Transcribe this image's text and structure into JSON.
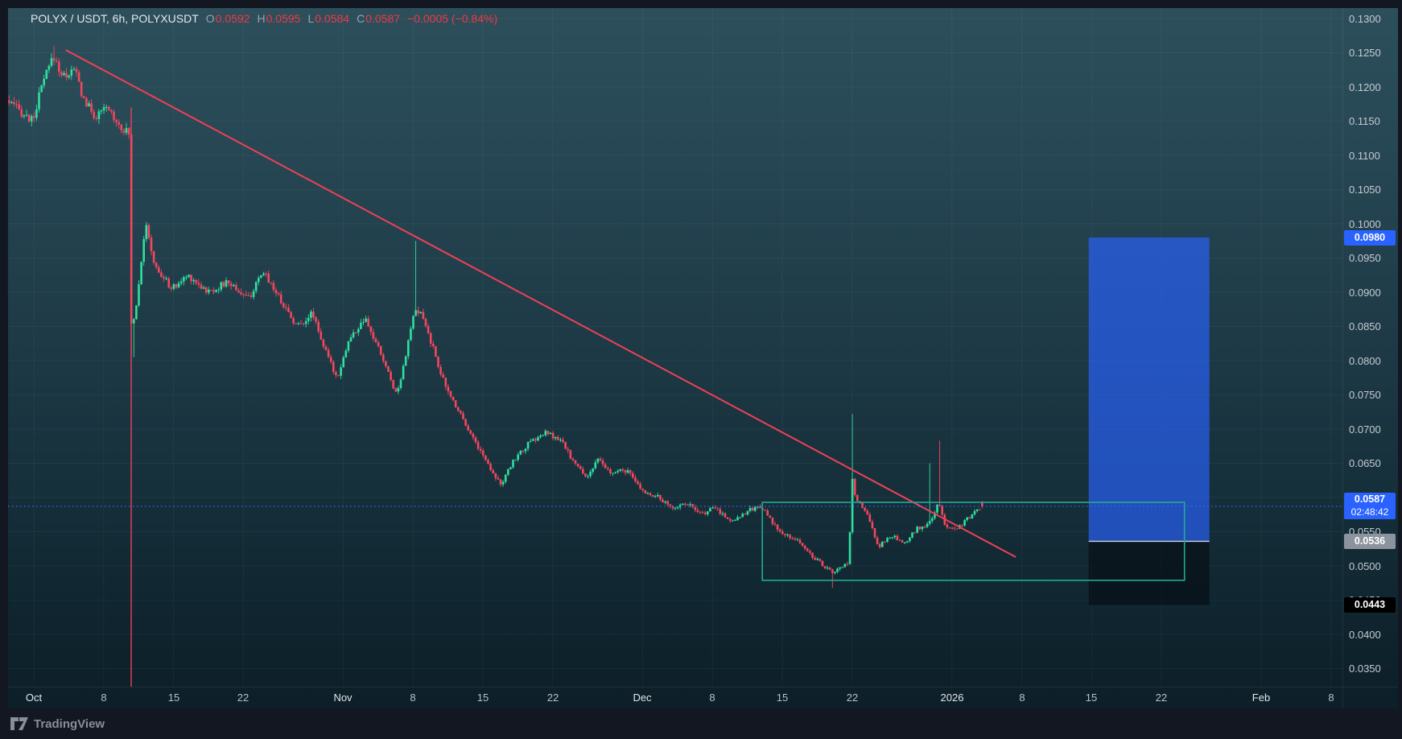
{
  "legend": {
    "symbol": "POLYX / USDT, 6h, POLYXUSDT",
    "open_label": "O",
    "open": "0.0592",
    "high_label": "H",
    "high": "0.0595",
    "low_label": "L",
    "low": "0.0584",
    "close_label": "C",
    "close": "0.0587",
    "change": "−0.0005 (−0.84%)"
  },
  "footer": {
    "brand": "TradingView"
  },
  "colors": {
    "up": "#2fe0a0",
    "down": "#f6465d",
    "line_red": "#ef4056",
    "teal_box": "#22ab94",
    "blue_fill": "rgba(41,98,255,0.66)",
    "dark_fill": "rgba(2,6,12,0.52)",
    "dark_top_line": "#cdd3dc",
    "dotted_blue": "#3168ff",
    "grid": "rgba(255,255,255,0.045)"
  },
  "chart_data": {
    "type": "candlestick",
    "title": "POLYX / USDT",
    "interval": "6h",
    "symbol": "POLYXUSDT",
    "current_price": 0.0587,
    "countdown": "02:48:42",
    "last_candle": {
      "open": 0.0592,
      "high": 0.0595,
      "low": 0.0584,
      "close": 0.0587
    },
    "y_axis": {
      "ticks": [
        0.13,
        0.125,
        0.12,
        0.115,
        0.11,
        0.105,
        0.1,
        0.095,
        0.09,
        0.085,
        0.08,
        0.075,
        0.07,
        0.065,
        0.06,
        0.055,
        0.05,
        0.045,
        0.04,
        0.035
      ],
      "visible_range": [
        0.0325,
        0.1315
      ]
    },
    "x_axis": {
      "ticks": [
        {
          "label": "Oct",
          "day": 0,
          "major": true
        },
        {
          "label": "8",
          "day": 7
        },
        {
          "label": "15",
          "day": 14
        },
        {
          "label": "22",
          "day": 21
        },
        {
          "label": "Nov",
          "day": 31,
          "major": true
        },
        {
          "label": "8",
          "day": 38
        },
        {
          "label": "15",
          "day": 45
        },
        {
          "label": "22",
          "day": 52
        },
        {
          "label": "Dec",
          "day": 61,
          "major": true
        },
        {
          "label": "8",
          "day": 68
        },
        {
          "label": "15",
          "day": 75
        },
        {
          "label": "22",
          "day": 82
        },
        {
          "label": "2026",
          "day": 92,
          "major": true
        },
        {
          "label": "8",
          "day": 99
        },
        {
          "label": "15",
          "day": 106
        },
        {
          "label": "22",
          "day": 113
        },
        {
          "label": "Feb",
          "day": 123,
          "major": true
        },
        {
          "label": "8",
          "day": 130
        }
      ]
    },
    "price_path": [
      [
        -2.6,
        0.118
      ],
      [
        0,
        0.115
      ],
      [
        1.0,
        0.1205
      ],
      [
        2.1,
        0.1245
      ],
      [
        3.0,
        0.1215
      ],
      [
        4.3,
        0.1225
      ],
      [
        5.0,
        0.1185
      ],
      [
        6.3,
        0.1155
      ],
      [
        7.5,
        0.117
      ],
      [
        8.7,
        0.1145
      ],
      [
        9.7,
        0.113
      ],
      [
        9.8,
        0.085
      ],
      [
        10.3,
        0.087
      ],
      [
        11.3,
        0.1
      ],
      [
        12.3,
        0.0935
      ],
      [
        14.0,
        0.0905
      ],
      [
        15.6,
        0.0925
      ],
      [
        17.6,
        0.09
      ],
      [
        19.6,
        0.0915
      ],
      [
        21.6,
        0.089
      ],
      [
        23.2,
        0.093
      ],
      [
        24.8,
        0.089
      ],
      [
        26.5,
        0.085
      ],
      [
        28.1,
        0.087
      ],
      [
        29.3,
        0.0815
      ],
      [
        30.5,
        0.0775
      ],
      [
        31.7,
        0.083
      ],
      [
        33.3,
        0.086
      ],
      [
        34.9,
        0.081
      ],
      [
        36.5,
        0.075
      ],
      [
        37.7,
        0.083
      ],
      [
        38.2,
        0.087
      ],
      [
        39.0,
        0.0868
      ],
      [
        40.2,
        0.0815
      ],
      [
        41.4,
        0.076
      ],
      [
        43.0,
        0.072
      ],
      [
        44.2,
        0.0685
      ],
      [
        45.8,
        0.0645
      ],
      [
        47.0,
        0.0618
      ],
      [
        48.2,
        0.0655
      ],
      [
        49.8,
        0.068
      ],
      [
        51.5,
        0.0695
      ],
      [
        53.1,
        0.068
      ],
      [
        54.3,
        0.065
      ],
      [
        55.5,
        0.063
      ],
      [
        56.7,
        0.0655
      ],
      [
        57.9,
        0.0635
      ],
      [
        59.5,
        0.064
      ],
      [
        61.1,
        0.061
      ],
      [
        62.7,
        0.06
      ],
      [
        64.0,
        0.0585
      ],
      [
        65.6,
        0.0592
      ],
      [
        66.8,
        0.0575
      ],
      [
        68.4,
        0.0585
      ],
      [
        70.0,
        0.0565
      ],
      [
        71.6,
        0.058
      ],
      [
        73.0,
        0.0588
      ],
      [
        74.0,
        0.0565
      ],
      [
        75.2,
        0.0545
      ],
      [
        76.5,
        0.054
      ],
      [
        77.7,
        0.052
      ],
      [
        78.9,
        0.0505
      ],
      [
        80.1,
        0.049
      ],
      [
        81.1,
        0.0498
      ],
      [
        81.8,
        0.0505
      ],
      [
        82.1,
        0.063
      ],
      [
        82.3,
        0.0605
      ],
      [
        83.6,
        0.0575
      ],
      [
        84.8,
        0.0528
      ],
      [
        86.1,
        0.0545
      ],
      [
        87.3,
        0.053
      ],
      [
        88.6,
        0.0555
      ],
      [
        89.8,
        0.056
      ],
      [
        90.8,
        0.0592
      ],
      [
        91.4,
        0.056
      ],
      [
        92.6,
        0.0555
      ],
      [
        93.4,
        0.0565
      ],
      [
        94.2,
        0.0575
      ],
      [
        95.1,
        0.0587
      ]
    ],
    "spikes": [
      {
        "day": 2.1,
        "high": 0.126
      },
      {
        "day": 9.7,
        "low": 0.084
      },
      {
        "day": 9.9,
        "low": 0.0805
      },
      {
        "day": 38.2,
        "high": 0.0975
      },
      {
        "day": 80.1,
        "low": 0.0468
      },
      {
        "day": 82.0,
        "high": 0.0722
      },
      {
        "day": 89.8,
        "high": 0.065
      },
      {
        "day": 90.8,
        "high": 0.0683
      }
    ],
    "drawings": {
      "trendline": {
        "from_day": 3.2,
        "from_price": 0.1254,
        "to_day": 98.4,
        "to_price": 0.0513
      },
      "vertical_line": {
        "day": 9.76,
        "top_price": 0.117
      },
      "range_box": {
        "from_day": 73.0,
        "to_day": 115.3,
        "top_price": 0.0593,
        "bottom_price": 0.0479
      },
      "blue_box": {
        "from_day": 105.7,
        "to_day": 117.8,
        "top_price": 0.098,
        "bottom_price": 0.0536
      },
      "dark_box": {
        "from_day": 105.7,
        "to_day": 117.8,
        "top_price": 0.0536,
        "bottom_price": 0.0443
      }
    },
    "badges": [
      {
        "text": "0.0980",
        "type": "blue",
        "price": 0.098
      },
      {
        "text": "0.0587",
        "type": "blue",
        "price": 0.0587,
        "countdown": "02:48:42"
      },
      {
        "text": "0.0536",
        "type": "gray",
        "price": 0.0536
      },
      {
        "text": "0.0443",
        "type": "black",
        "price": 0.0443
      }
    ],
    "legend_position": "top-left",
    "grid": true
  }
}
